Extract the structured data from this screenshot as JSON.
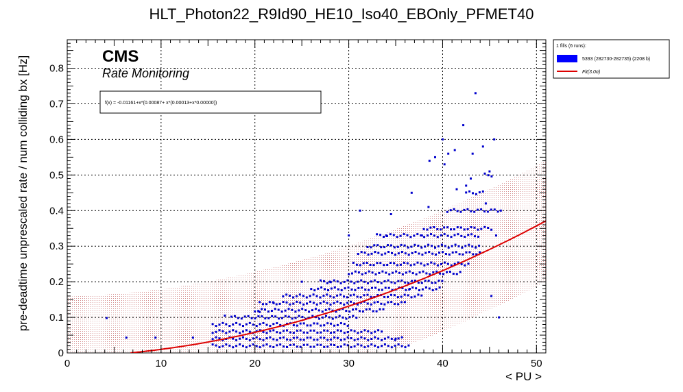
{
  "chart_data": {
    "type": "scatter",
    "title": "HLT_Photon22_R9Id90_HE10_Iso40_EBOnly_PFMET40",
    "xlabel": "< PU >",
    "ylabel": "pre-deadtime unprescaled rate / num colliding bx [Hz]",
    "xlim": [
      0,
      51
    ],
    "ylim": [
      0,
      0.88
    ],
    "x_ticks": [
      "0",
      "10",
      "20",
      "30",
      "40",
      "50"
    ],
    "y_ticks": [
      "0",
      "0.1",
      "0.2",
      "0.3",
      "0.4",
      "0.5",
      "0.6",
      "0.7",
      "0.8"
    ],
    "grid": true,
    "cms_label": "CMS",
    "cms_sublabel": "Rate Monitoring",
    "fit_formula": "f(x) = -0.01161+x*(0.00087+ x*(0.00013+x*0.00000))",
    "fit": {
      "coefficients": [
        -0.01161,
        0.00087,
        0.00013,
        0.0
      ],
      "band_sigma": 3.0,
      "band_halfwidth": 0.17,
      "color": "#dd0000"
    },
    "legend": {
      "header": "1 fills (6 runs):",
      "position": "outside-right",
      "entries": [
        {
          "label": "5393 (282730-282735) (2208 b)",
          "color": "#0000ff",
          "kind": "box"
        },
        {
          "label": "Fit(3.0σ)",
          "color": "#dd0000",
          "kind": "line"
        }
      ]
    },
    "series": [
      {
        "name": "5393 (282730-282735) (2208 b)",
        "color": "#0000cc",
        "bands": [
          {
            "y": 0.02,
            "x_from": 15.5,
            "x_to": 36.5
          },
          {
            "y": 0.04,
            "x_from": 15.5,
            "x_to": 36.0
          },
          {
            "y": 0.06,
            "x_from": 15.5,
            "x_to": 33.5
          },
          {
            "y": 0.08,
            "x_from": 15.5,
            "x_to": 30.0
          },
          {
            "y": 0.1,
            "x_from": 17.5,
            "x_to": 31.0
          },
          {
            "y": 0.12,
            "x_from": 20.0,
            "x_to": 34.0
          },
          {
            "y": 0.14,
            "x_from": 20.5,
            "x_to": 36.0
          },
          {
            "y": 0.16,
            "x_from": 23.0,
            "x_to": 38.0
          },
          {
            "y": 0.18,
            "x_from": 26.0,
            "x_to": 40.0
          },
          {
            "y": 0.2,
            "x_from": 27.0,
            "x_to": 40.0
          },
          {
            "y": 0.225,
            "x_from": 30.0,
            "x_to": 42.0
          },
          {
            "y": 0.25,
            "x_from": 30.5,
            "x_to": 43.0
          },
          {
            "y": 0.28,
            "x_from": 31.0,
            "x_to": 44.0
          },
          {
            "y": 0.3,
            "x_from": 32.0,
            "x_to": 44.0
          },
          {
            "y": 0.33,
            "x_from": 33.0,
            "x_to": 44.0
          },
          {
            "y": 0.35,
            "x_from": 38.0,
            "x_to": 45.5
          },
          {
            "y": 0.4,
            "x_from": 40.5,
            "x_to": 46.0
          },
          {
            "y": 0.45,
            "x_from": 42.5,
            "x_to": 44.5
          },
          {
            "y": 0.5,
            "x_from": 44.5,
            "x_to": 45.5
          }
        ],
        "points": [
          {
            "x": 4.2,
            "y": 0.098
          },
          {
            "x": 6.3,
            "y": 0.043
          },
          {
            "x": 9.4,
            "y": 0.043
          },
          {
            "x": 13.4,
            "y": 0.043
          },
          {
            "x": 16.8,
            "y": 0.105
          },
          {
            "x": 20.5,
            "y": 0.115
          },
          {
            "x": 22.0,
            "y": 0.14
          },
          {
            "x": 25.0,
            "y": 0.2
          },
          {
            "x": 28.0,
            "y": 0.2
          },
          {
            "x": 30.0,
            "y": 0.33
          },
          {
            "x": 31.2,
            "y": 0.4
          },
          {
            "x": 34.0,
            "y": 0.33
          },
          {
            "x": 34.5,
            "y": 0.39
          },
          {
            "x": 35.0,
            "y": 0.04
          },
          {
            "x": 36.5,
            "y": 0.18
          },
          {
            "x": 36.7,
            "y": 0.45
          },
          {
            "x": 37.8,
            "y": 0.33
          },
          {
            "x": 38.5,
            "y": 0.41
          },
          {
            "x": 38.6,
            "y": 0.54
          },
          {
            "x": 39.2,
            "y": 0.55
          },
          {
            "x": 40.0,
            "y": 0.6
          },
          {
            "x": 40.2,
            "y": 0.53
          },
          {
            "x": 40.6,
            "y": 0.56
          },
          {
            "x": 41.3,
            "y": 0.57
          },
          {
            "x": 41.5,
            "y": 0.46
          },
          {
            "x": 42.2,
            "y": 0.64
          },
          {
            "x": 42.5,
            "y": 0.47
          },
          {
            "x": 43.0,
            "y": 0.49
          },
          {
            "x": 43.2,
            "y": 0.56
          },
          {
            "x": 43.5,
            "y": 0.73
          },
          {
            "x": 44.3,
            "y": 0.58
          },
          {
            "x": 44.6,
            "y": 0.42
          },
          {
            "x": 45.0,
            "y": 0.51
          },
          {
            "x": 45.2,
            "y": 0.16
          },
          {
            "x": 45.5,
            "y": 0.6
          },
          {
            "x": 45.7,
            "y": 0.33
          },
          {
            "x": 46.0,
            "y": 0.1
          },
          {
            "x": 46.2,
            "y": 0.4
          }
        ]
      }
    ]
  }
}
